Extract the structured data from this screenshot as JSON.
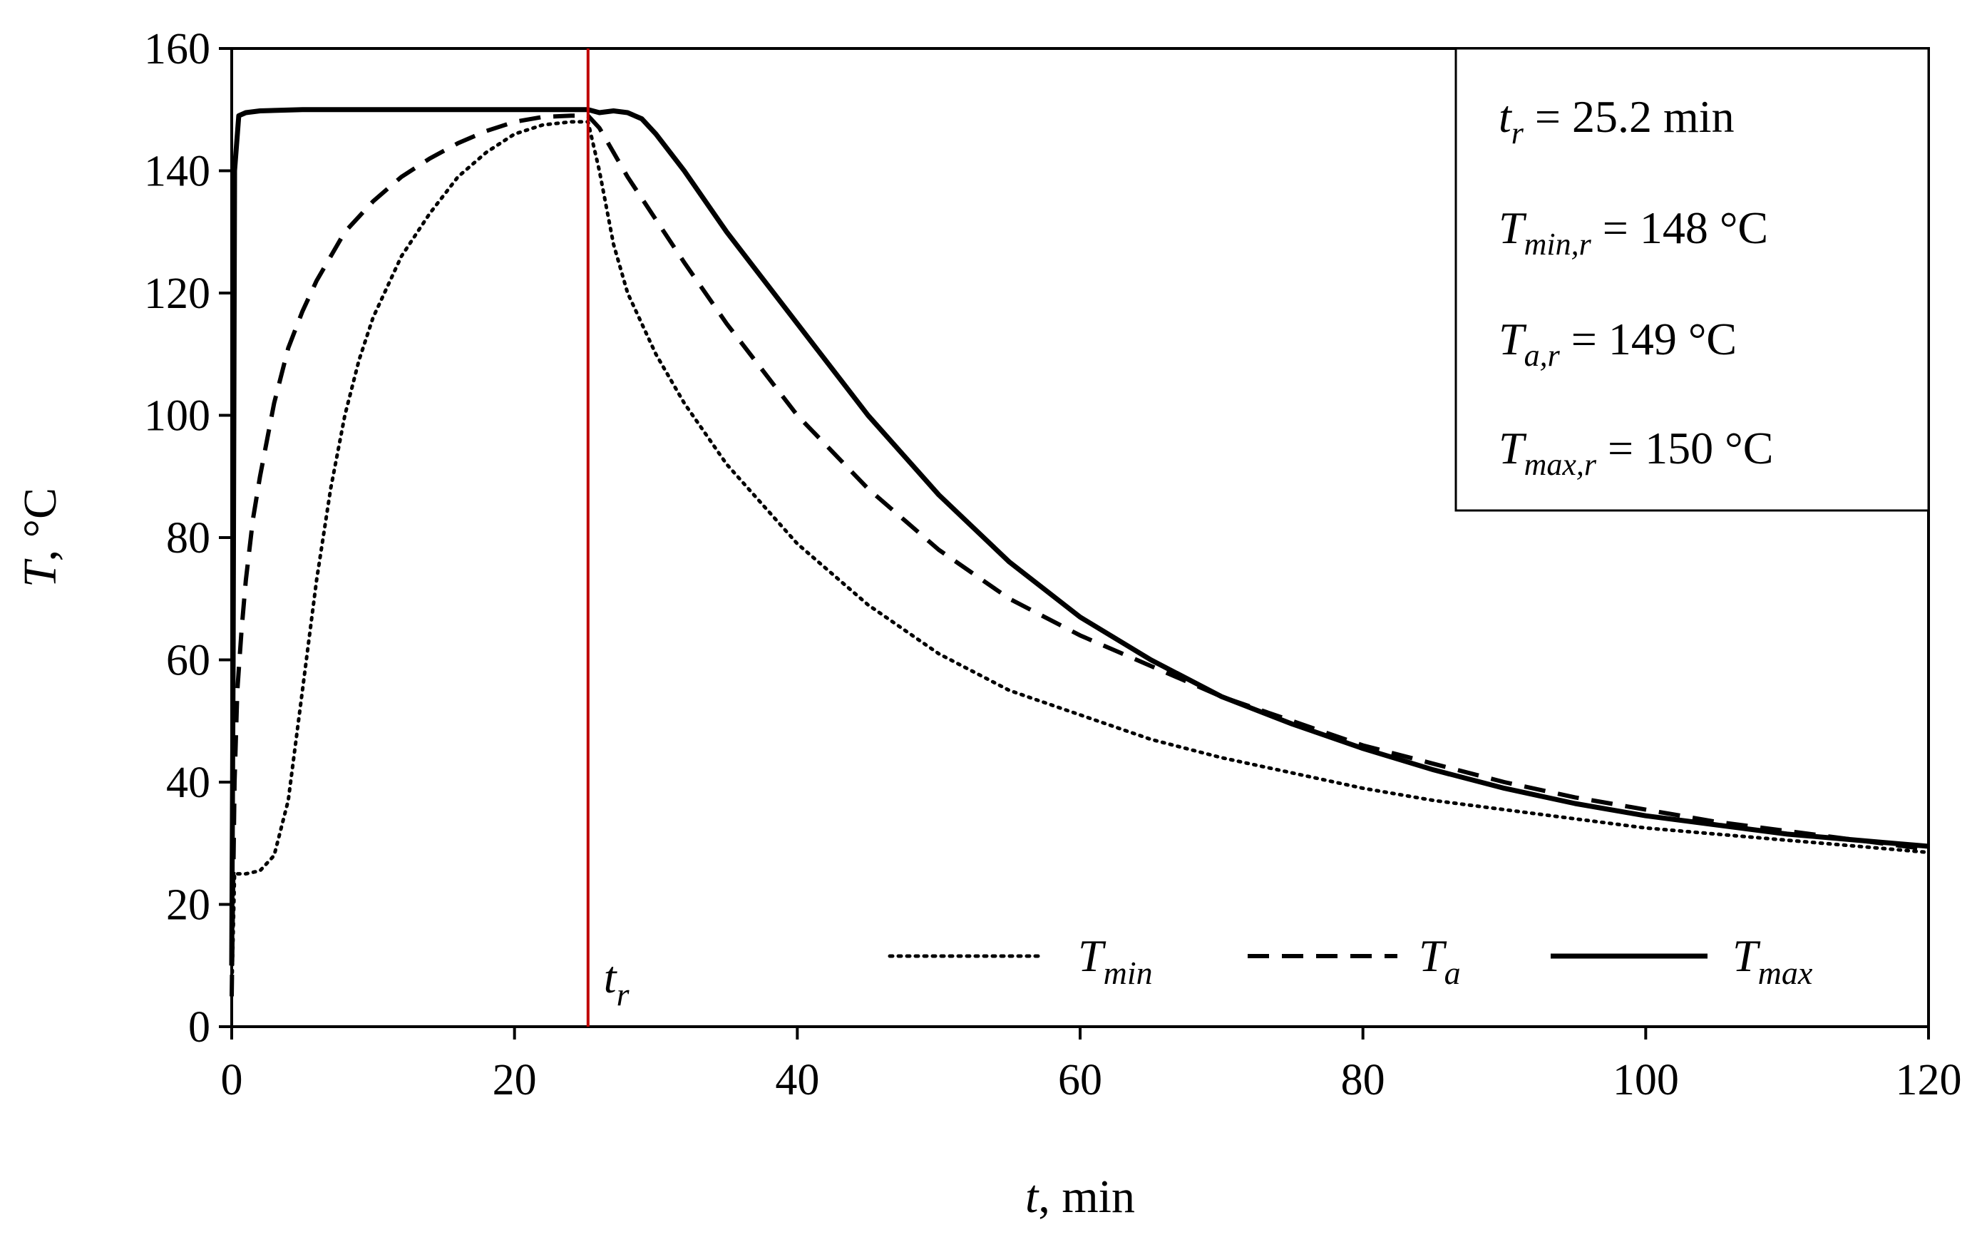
{
  "chart_data": {
    "type": "line",
    "title": "",
    "xlabel": {
      "var": "t",
      "rest": ", min"
    },
    "ylabel": {
      "var": "T",
      "rest": ", °C"
    },
    "xlim": [
      0,
      120
    ],
    "ylim": [
      0,
      160
    ],
    "x_ticks": [
      0,
      20,
      40,
      60,
      80,
      100,
      120
    ],
    "y_ticks": [
      0,
      20,
      40,
      60,
      80,
      100,
      120,
      140,
      160
    ],
    "grid": false,
    "legend_position": "bottom-right",
    "vertical_line": {
      "x": 25.2,
      "color": "#c00000",
      "label_main": "t",
      "label_sub": "r"
    },
    "info_box": {
      "position": "top-right",
      "lines": [
        {
          "main": "t",
          "sub": "r",
          "rest": " = 25.2 min"
        },
        {
          "main": "T",
          "sub": "min,r",
          "rest": " = 148 °C"
        },
        {
          "main": "T",
          "sub": "a,r",
          "rest": " = 149 °C"
        },
        {
          "main": "T",
          "sub": "max,r",
          "rest": " = 150 °C"
        }
      ]
    },
    "series": [
      {
        "name": "T_min",
        "label_main": "T",
        "label_sub": "min",
        "style": "dotted",
        "color": "#000000",
        "x": [
          0,
          0.2,
          0.5,
          1,
          2,
          3,
          4,
          5,
          6,
          7,
          8,
          9,
          10,
          12,
          14,
          16,
          18,
          20,
          22,
          24,
          25.2,
          26,
          27,
          28,
          30,
          32,
          35,
          40,
          45,
          50,
          55,
          60,
          65,
          70,
          75,
          80,
          85,
          90,
          95,
          100,
          105,
          110,
          115,
          120
        ],
        "y": [
          5,
          25,
          25,
          25,
          25.5,
          28,
          37,
          55,
          73,
          88,
          100,
          109,
          116,
          126,
          133,
          139,
          143,
          146,
          147.5,
          148,
          148,
          140,
          128,
          120,
          110,
          102,
          92,
          79,
          69,
          61,
          55,
          51,
          47,
          44,
          41.5,
          39,
          37,
          35.5,
          34,
          32.5,
          31.5,
          30.5,
          29.5,
          28.5
        ]
      },
      {
        "name": "T_a",
        "label_main": "T",
        "label_sub": "a",
        "style": "dashed",
        "color": "#000000",
        "x": [
          0,
          0.2,
          0.4,
          0.7,
          1,
          1.5,
          2,
          3,
          4,
          5,
          6,
          8,
          10,
          12,
          14,
          16,
          18,
          20,
          22,
          24,
          25.2,
          26,
          27,
          28,
          30,
          32,
          35,
          40,
          45,
          50,
          55,
          60,
          65,
          70,
          75,
          80,
          85,
          90,
          95,
          100,
          105,
          110,
          115,
          120
        ],
        "y": [
          5,
          40,
          55,
          65,
          73,
          83,
          90,
          102,
          111,
          117,
          122,
          130,
          135,
          139,
          142,
          144.5,
          146.5,
          148,
          148.8,
          149,
          149,
          147,
          143,
          139,
          132,
          125,
          115,
          100,
          88,
          78,
          70,
          64,
          59,
          54,
          50,
          46,
          43,
          40,
          37.5,
          35.5,
          33.5,
          32,
          30.5,
          29
        ]
      },
      {
        "name": "T_max",
        "label_main": "T",
        "label_sub": "max",
        "style": "solid",
        "color": "#000000",
        "x": [
          0,
          0.1,
          0.2,
          0.5,
          1,
          2,
          5,
          10,
          15,
          20,
          25.2,
          26,
          27,
          28,
          29,
          30,
          32,
          35,
          40,
          45,
          50,
          55,
          60,
          65,
          70,
          75,
          80,
          85,
          90,
          95,
          100,
          105,
          110,
          115,
          120
        ],
        "y": [
          10,
          60,
          140,
          149,
          149.5,
          149.8,
          150,
          150,
          150,
          150,
          150,
          149.5,
          149.8,
          149.5,
          148.5,
          146,
          140,
          130,
          115,
          100,
          87,
          76,
          67,
          60,
          54,
          49.5,
          45.5,
          42,
          39,
          36.5,
          34.5,
          33,
          31.5,
          30.5,
          29.5
        ]
      }
    ]
  }
}
